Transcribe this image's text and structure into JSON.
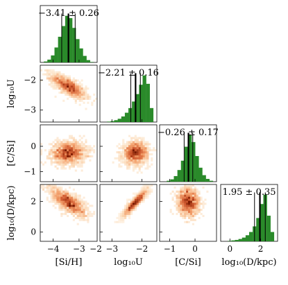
{
  "chart_data": {
    "type": "corner",
    "parameters": [
      {
        "label": "[Si/H]",
        "range": [
          -4.5,
          -2.3
        ],
        "ticks": [
          -4,
          -3
        ],
        "annotation": "−3.41 ± 0.26",
        "median": -3.41,
        "sigma": 0.26,
        "hist": [
          0,
          0.02,
          0.06,
          0.15,
          0.32,
          0.55,
          0.78,
          1.0,
          0.95,
          0.74,
          0.5,
          0.3,
          0.14,
          0.05,
          0.01,
          0
        ]
      },
      {
        "label": "log₁₀U",
        "range": [
          -3.4,
          -1.5
        ],
        "ticks": [
          -3,
          -2
        ],
        "tick_texts": [
          "−3",
          "−2"
        ],
        "annotation": "−2.21 ± 0.16",
        "median": -2.21,
        "sigma": 0.16,
        "hist": [
          0,
          0,
          0.01,
          0.02,
          0.04,
          0.07,
          0.12,
          0.2,
          0.3,
          0.44,
          0.6,
          0.8,
          1.0,
          0.82,
          0.3,
          0
        ]
      },
      {
        "label": "[C/Si]",
        "range": [
          -1.4,
          0.85
        ],
        "ticks": [
          -1,
          0
        ],
        "annotation": "−0.26 ± 0.17",
        "median": -0.26,
        "sigma": 0.17,
        "hist": [
          0,
          0,
          0.02,
          0.05,
          0.12,
          0.25,
          0.45,
          0.75,
          1.0,
          0.85,
          0.55,
          0.3,
          0.14,
          0.06,
          0.02,
          0
        ]
      },
      {
        "label": "log₁₀(D/kpc)",
        "range": [
          -0.6,
          3.1
        ],
        "ticks": [
          0,
          2
        ],
        "annotation": "1.95 ± 0.35",
        "median": 1.95,
        "sigma": 0.35,
        "hist": [
          0,
          0,
          0.01,
          0.02,
          0.03,
          0.05,
          0.08,
          0.13,
          0.2,
          0.32,
          0.5,
          0.8,
          1.0,
          0.55,
          0.2,
          0
        ]
      }
    ],
    "row_ticks": {
      "1": {
        "values": [
          -3,
          -2
        ],
        "texts": [
          "−3",
          "−2"
        ]
      },
      "2": {
        "values": [
          -1,
          0
        ],
        "texts": [
          "−1",
          "0"
        ]
      },
      "3": {
        "values": [
          0,
          2
        ],
        "texts": [
          "0",
          "2"
        ]
      }
    },
    "bottom_tick_texts": {
      "0": [
        "−4",
        "−3"
      ],
      "1": [
        "−3",
        "−2"
      ],
      "2": [
        "−1",
        "0"
      ],
      "3": [
        "0",
        "2"
      ]
    },
    "x_edge_texts": {
      "0": "−2"
    },
    "colors": {
      "hist": "#2a8a2a",
      "line": "#000000",
      "density_dark": "#8b2500",
      "density_light": "#fde0c0"
    }
  }
}
